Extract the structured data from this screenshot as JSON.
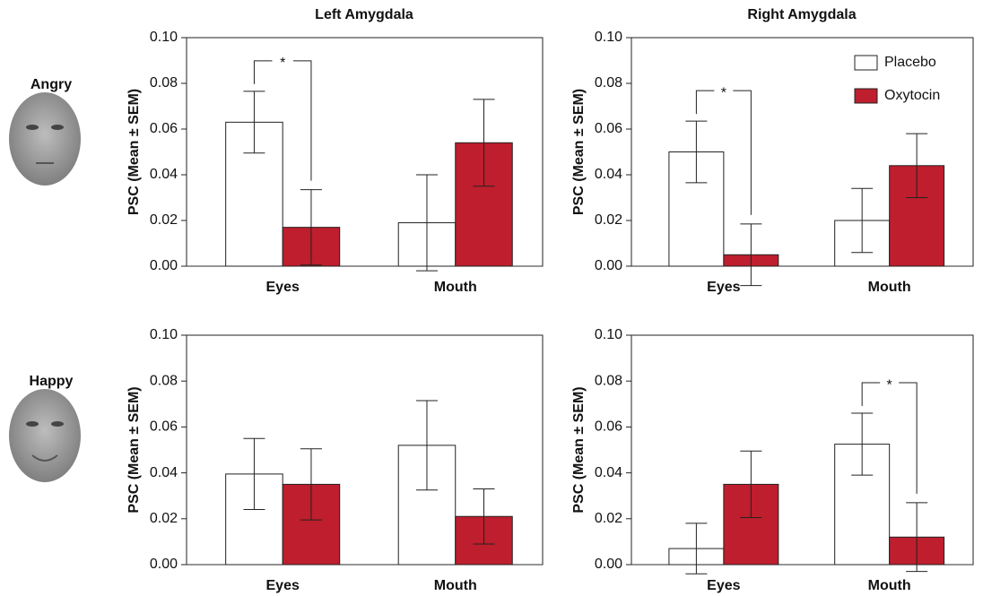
{
  "figure": {
    "columns": [
      "Left Amygdala",
      "Right Amygdala"
    ],
    "rows": [
      "Angry",
      "Happy"
    ]
  },
  "chart_data": [
    {
      "type": "bar",
      "categories": [
        "Eyes",
        "Mouth"
      ],
      "ylabel": "PSC (Mean ± SEM)",
      "ylim": [
        0,
        0.1
      ],
      "yticks": [
        {
          "value": 0,
          "label": "0.00"
        },
        {
          "value": 0.02,
          "label": "0.02"
        },
        {
          "value": 0.04,
          "label": "0.04"
        },
        {
          "value": 0.06,
          "label": "0.06"
        },
        {
          "value": 0.08,
          "label": "0.08"
        },
        {
          "value": 0.1,
          "label": "0.10"
        }
      ],
      "series": [
        {
          "color": "#ffffff",
          "values": [
            0.063,
            0.019
          ],
          "errors": [
            0.0135,
            0.021
          ]
        },
        {
          "color": "#be1e2d",
          "values": [
            0.017,
            0.054
          ],
          "errors": [
            0.0165,
            0.019
          ]
        }
      ],
      "significance": [
        {
          "label": "*",
          "category": 0
        }
      ]
    },
    {
      "type": "bar",
      "categories": [
        "Eyes",
        "Mouth"
      ],
      "ylabel": "PSC (Mean ± SEM)",
      "ylim": [
        0,
        0.1
      ],
      "yticks": [
        {
          "value": 0,
          "label": "0.00"
        },
        {
          "value": 0.02,
          "label": "0.02"
        },
        {
          "value": 0.04,
          "label": "0.04"
        },
        {
          "value": 0.06,
          "label": "0.06"
        },
        {
          "value": 0.08,
          "label": "0.08"
        },
        {
          "value": 0.1,
          "label": "0.10"
        }
      ],
      "series": [
        {
          "name": "Placebo",
          "color": "#ffffff",
          "values": [
            0.05,
            0.02
          ],
          "errors": [
            0.0135,
            0.014
          ]
        },
        {
          "name": "Oxytocin",
          "color": "#be1e2d",
          "values": [
            0.005,
            0.044
          ],
          "errors": [
            0.0135,
            0.014
          ]
        }
      ],
      "significance": [
        {
          "label": "*",
          "category": 0
        }
      ],
      "legend": "upper right"
    },
    {
      "type": "bar",
      "categories": [
        "Eyes",
        "Mouth"
      ],
      "ylabel": "PSC (Mean ± SEM)",
      "ylim": [
        0,
        0.1
      ],
      "yticks": [
        {
          "value": 0,
          "label": "0.00"
        },
        {
          "value": 0.02,
          "label": "0.02"
        },
        {
          "value": 0.04,
          "label": "0.04"
        },
        {
          "value": 0.06,
          "label": "0.06"
        },
        {
          "value": 0.08,
          "label": "0.08"
        },
        {
          "value": 0.1,
          "label": "0.10"
        }
      ],
      "series": [
        {
          "color": "#ffffff",
          "values": [
            0.0395,
            0.052
          ],
          "errors": [
            0.0155,
            0.0195
          ]
        },
        {
          "color": "#be1e2d",
          "values": [
            0.035,
            0.021
          ],
          "errors": [
            0.0155,
            0.012
          ]
        }
      ]
    },
    {
      "type": "bar",
      "categories": [
        "Eyes",
        "Mouth"
      ],
      "ylabel": "PSC (Mean ± SEM)",
      "ylim": [
        0,
        0.1
      ],
      "yticks": [
        {
          "value": 0,
          "label": "0.00"
        },
        {
          "value": 0.02,
          "label": "0.02"
        },
        {
          "value": 0.04,
          "label": "0.04"
        },
        {
          "value": 0.06,
          "label": "0.06"
        },
        {
          "value": 0.08,
          "label": "0.08"
        },
        {
          "value": 0.1,
          "label": "0.10"
        }
      ],
      "series": [
        {
          "color": "#ffffff",
          "values": [
            0.007,
            0.0525
          ],
          "errors": [
            0.011,
            0.0135
          ]
        },
        {
          "color": "#be1e2d",
          "values": [
            0.035,
            0.012
          ],
          "errors": [
            0.0145,
            0.015
          ]
        }
      ],
      "significance": [
        {
          "label": "*",
          "category": 1
        }
      ]
    }
  ]
}
